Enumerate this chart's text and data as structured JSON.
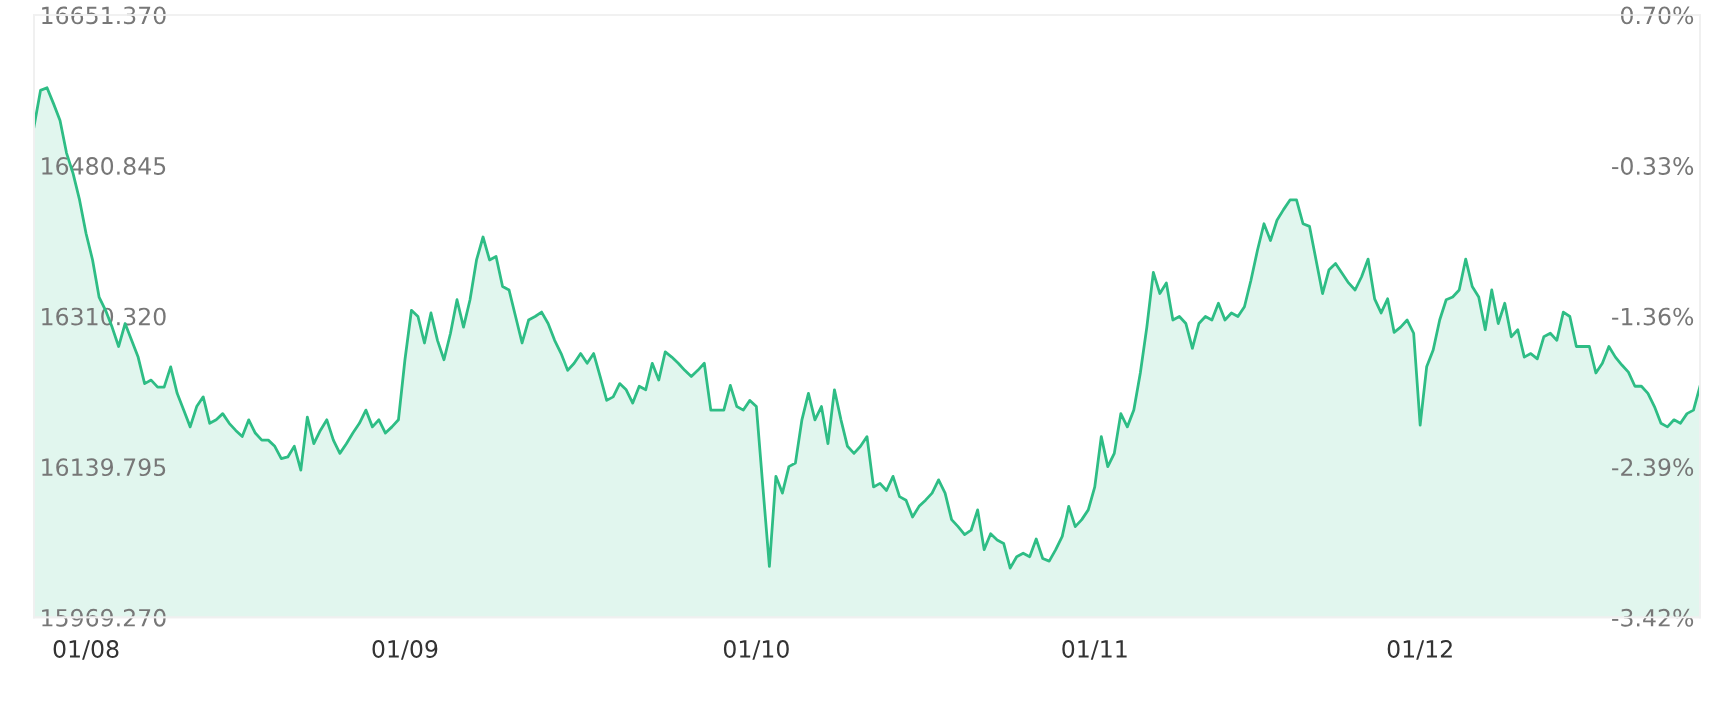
{
  "chart_data": {
    "type": "area",
    "categories": [
      null,
      null,
      null,
      null,
      null,
      null,
      null,
      null,
      "01/08",
      null,
      null,
      null,
      null,
      null,
      null,
      null,
      null,
      null,
      null,
      null,
      null,
      null,
      null,
      null,
      null,
      null,
      null,
      null,
      null,
      null,
      null,
      null,
      null,
      null,
      null,
      null,
      null,
      null,
      null,
      null,
      null,
      null,
      null,
      null,
      null,
      null,
      null,
      null,
      null,
      null,
      null,
      null,
      null,
      null,
      null,
      null,
      null,
      "01/09",
      null,
      null,
      null,
      null,
      null,
      null,
      null,
      null,
      null,
      null,
      null,
      null,
      null,
      null,
      null,
      null,
      null,
      null,
      null,
      null,
      null,
      null,
      null,
      null,
      null,
      null,
      null,
      null,
      null,
      null,
      null,
      null,
      null,
      null,
      null,
      null,
      null,
      null,
      null,
      null,
      null,
      null,
      null,
      null,
      null,
      null,
      null,
      null,
      null,
      null,
      null,
      null,
      null,
      "01/10",
      null,
      null,
      null,
      null,
      null,
      null,
      null,
      null,
      null,
      null,
      null,
      null,
      null,
      null,
      null,
      null,
      null,
      null,
      null,
      null,
      null,
      null,
      null,
      null,
      null,
      null,
      null,
      null,
      null,
      null,
      null,
      null,
      null,
      null,
      null,
      null,
      null,
      null,
      null,
      null,
      null,
      null,
      null,
      null,
      null,
      null,
      null,
      null,
      null,
      null,
      null,
      "01/11",
      null,
      null,
      null,
      null,
      null,
      null,
      null,
      null,
      null,
      null,
      null,
      null,
      null,
      null,
      null,
      null,
      null,
      null,
      null,
      null,
      null,
      null,
      null,
      null,
      null,
      null,
      null,
      null,
      null,
      null,
      null,
      null,
      null,
      null,
      null,
      null,
      null,
      null,
      null,
      null,
      null,
      null,
      null,
      null,
      null,
      null,
      null,
      null,
      null,
      "01/12",
      null,
      null,
      null,
      null,
      null,
      null,
      null,
      null,
      null,
      null,
      null,
      null,
      null,
      null,
      null,
      null,
      null,
      null,
      null,
      null,
      null,
      null,
      null,
      null,
      null,
      null,
      null,
      null,
      null,
      null,
      null,
      null,
      null,
      null,
      null,
      null,
      null,
      null,
      null,
      null,
      null,
      null,
      null
    ],
    "series": [
      {
        "color": "#2ebd85",
        "values": [
          16525,
          16566,
          16569,
          16551,
          16532,
          16495,
          16472,
          16442,
          16404,
          16374,
          16332,
          16317,
          16298,
          16276,
          16302,
          16283,
          16264,
          16234,
          16238,
          16230,
          16230,
          16253,
          16223,
          16204,
          16185,
          16208,
          16219,
          16189,
          16193,
          16200,
          16189,
          16181,
          16174,
          16193,
          16178,
          16170,
          16170,
          16163,
          16149,
          16151,
          16163,
          16136,
          16196,
          16166,
          16181,
          16193,
          16170,
          16155,
          16166,
          16178,
          16189,
          16204,
          16185,
          16193,
          16178,
          16185,
          16193,
          16261,
          16317,
          16310,
          16280,
          16314,
          16283,
          16261,
          16291,
          16329,
          16298,
          16329,
          16374,
          16400,
          16374,
          16378,
          16344,
          16340,
          16310,
          16280,
          16306,
          16310,
          16315,
          16302,
          16283,
          16268,
          16249,
          16257,
          16268,
          16257,
          16268,
          16242,
          16215,
          16219,
          16234,
          16227,
          16212,
          16231,
          16227,
          16257,
          16238,
          16270,
          16264,
          16257,
          16249,
          16242,
          16249,
          16257,
          16204,
          16204,
          16204,
          16232,
          16208,
          16204,
          16215,
          16208,
          16117,
          16027,
          16129,
          16110,
          16140,
          16144,
          16193,
          16223,
          16193,
          16208,
          16166,
          16227,
          16193,
          16163,
          16155,
          16163,
          16174,
          16117,
          16121,
          16113,
          16129,
          16106,
          16102,
          16083,
          16095,
          16102,
          16110,
          16125,
          16110,
          16080,
          16072,
          16063,
          16068,
          16091,
          16046,
          16064,
          16057,
          16053,
          16025,
          16038,
          16042,
          16038,
          16058,
          16036,
          16033,
          16046,
          16061,
          16095,
          16072,
          16080,
          16091,
          16117,
          16174,
          16140,
          16155,
          16200,
          16185,
          16204,
          16246,
          16298,
          16360,
          16336,
          16348,
          16306,
          16310,
          16302,
          16274,
          16302,
          16310,
          16306,
          16325,
          16306,
          16314,
          16310,
          16321,
          16351,
          16385,
          16415,
          16396,
          16419,
          16431,
          16442,
          16442,
          16415,
          16412,
          16374,
          16336,
          16363,
          16370,
          16359,
          16348,
          16340,
          16355,
          16375,
          16330,
          16314,
          16330,
          16292,
          16298,
          16306,
          16291,
          16187,
          16253,
          16272,
          16306,
          16329,
          16332,
          16340,
          16375,
          16344,
          16332,
          16295,
          16340,
          16302,
          16325,
          16287,
          16295,
          16264,
          16268,
          16262,
          16287,
          16291,
          16283,
          16315,
          16310,
          16276,
          16276,
          16276,
          16246,
          16257,
          16276,
          16264,
          16255,
          16247,
          16231,
          16231,
          16223,
          16208,
          16189,
          16185,
          16193,
          16189,
          16200,
          16204,
          16231
        ]
      }
    ],
    "ylim": [
      15969.27,
      16651.37
    ],
    "yticks": [
      {
        "value": 15969.27,
        "label": "15969.270"
      },
      {
        "value": 16139.795,
        "label": "16139.795"
      },
      {
        "value": 16310.32,
        "label": "16310.320"
      },
      {
        "value": 16480.845,
        "label": "16480.845"
      },
      {
        "value": 16651.37,
        "label": "16651.370"
      }
    ],
    "y2lim": [
      -3.42,
      0.7
    ],
    "y2ticks": [
      {
        "value": -3.42,
        "label": "-3.42%"
      },
      {
        "value": -2.39,
        "label": "-2.39%"
      },
      {
        "value": -1.36,
        "label": "-1.36%"
      },
      {
        "value": -0.33,
        "label": "-0.33%"
      },
      {
        "value": 0.7,
        "label": "0.70%"
      }
    ],
    "grid": false,
    "legend": false
  }
}
